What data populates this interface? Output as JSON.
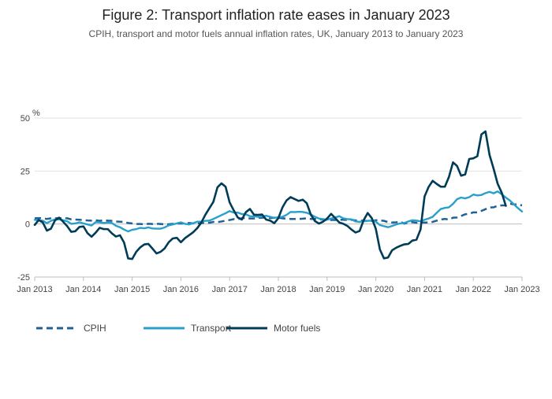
{
  "chart_data": {
    "type": "line",
    "title": "Figure 2: Transport inflation rate eases in January 2023",
    "subtitle": "CPIH, transport and motor fuels annual inflation rates, UK, January 2013 to January 2023",
    "ylabel": "%",
    "xlabel": "",
    "ylim": [
      -25,
      50
    ],
    "yticks": [
      -25,
      0,
      25,
      50
    ],
    "xtick_labels": [
      "Jan 2013",
      "Jan 2014",
      "Jan 2015",
      "Jan 2016",
      "Jan 2017",
      "Jan 2018",
      "Jan 2019",
      "Jan 2020",
      "Jan 2021",
      "Jan 2022",
      "Jan 2023"
    ],
    "x_start": "2013-01",
    "grid": true,
    "legend_position": "bottom-left",
    "series": [
      {
        "name": "CPIH",
        "color": "#206095",
        "dash": "dashed",
        "values": [
          2.7,
          2.8,
          2.7,
          2.4,
          2.7,
          2.7,
          2.8,
          2.7,
          2.7,
          2.2,
          2.1,
          2.0,
          1.9,
          1.7,
          1.6,
          1.8,
          1.5,
          1.8,
          1.6,
          1.5,
          1.2,
          1.1,
          1.0,
          0.5,
          0.3,
          0.0,
          0.0,
          -0.1,
          0.1,
          0.0,
          0.1,
          0.0,
          -0.1,
          -0.1,
          0.1,
          0.2,
          0.3,
          0.2,
          0.5,
          0.3,
          0.3,
          0.5,
          0.6,
          0.6,
          1.0,
          0.9,
          1.2,
          1.6,
          1.9,
          2.3,
          2.3,
          2.7,
          2.9,
          2.6,
          2.6,
          2.9,
          3.0,
          3.0,
          2.8,
          3.0,
          3.0,
          2.7,
          2.5,
          2.4,
          2.4,
          2.4,
          2.5,
          2.7,
          2.4,
          2.4,
          2.2,
          2.1,
          1.8,
          1.9,
          1.9,
          2.0,
          2.0,
          1.9,
          2.0,
          1.7,
          1.7,
          1.5,
          1.5,
          1.4,
          1.8,
          1.7,
          1.5,
          0.9,
          0.7,
          0.8,
          1.1,
          0.2,
          0.7,
          0.9,
          0.6,
          0.8,
          0.7,
          0.7,
          1.0,
          1.6,
          2.1,
          2.4,
          2.1,
          3.0,
          3.1,
          3.8,
          4.6,
          4.8,
          5.5,
          5.5,
          6.2,
          7.0,
          7.8,
          7.9,
          8.6,
          8.8,
          8.8,
          9.6,
          9.3,
          9.2,
          8.8
        ]
      },
      {
        "name": "Transport",
        "color": "#27a0cc",
        "dash": "solid",
        "values": [
          2.0,
          1.7,
          1.6,
          0.4,
          1.5,
          2.2,
          2.2,
          1.8,
          1.3,
          0.1,
          0.3,
          0.8,
          0.3,
          -0.2,
          -0.7,
          0.9,
          0.8,
          0.5,
          0.7,
          0.5,
          -0.8,
          -1.5,
          -2.6,
          -3.5,
          -2.7,
          -2.4,
          -1.8,
          -2.0,
          -1.6,
          -2.1,
          -2.2,
          -2.2,
          -1.6,
          -0.6,
          -0.2,
          0.3,
          0.8,
          0.1,
          -0.2,
          0.4,
          1.1,
          1.1,
          1.5,
          1.6,
          2.4,
          3.3,
          4.2,
          5.1,
          6.1,
          5.4,
          5.4,
          4.7,
          4.6,
          3.7,
          3.6,
          3.4,
          3.6,
          3.9,
          3.4,
          2.9,
          3.2,
          3.4,
          4.3,
          5.7,
          5.6,
          5.8,
          5.7,
          5.3,
          4.5,
          3.4,
          2.6,
          2.3,
          2.0,
          2.6,
          3.1,
          3.7,
          2.7,
          2.3,
          2.2,
          1.2,
          1.0,
          1.3,
          1.5,
          1.6,
          1.1,
          -0.5,
          -1.0,
          -1.5,
          -0.9,
          -0.2,
          0.3,
          0.5,
          1.2,
          1.8,
          1.6,
          1.3,
          2.0,
          2.6,
          3.4,
          5.3,
          7.1,
          7.6,
          7.9,
          9.5,
          11.7,
          12.5,
          12.1,
          12.7,
          13.9,
          13.5,
          13.7,
          14.6,
          15.2,
          14.5,
          15.4,
          14.0,
          12.5,
          11.1,
          9.3,
          7.5,
          5.9
        ]
      },
      {
        "name": "Motor fuels",
        "color": "#003c57",
        "dash": "solid",
        "values": [
          -0.4,
          1.9,
          0.7,
          -3.1,
          -2.2,
          1.7,
          3.0,
          1.1,
          -1.0,
          -3.7,
          -3.4,
          -1.4,
          -1.1,
          -4.3,
          -6.0,
          -4.1,
          -1.8,
          -2.4,
          -2.4,
          -4.4,
          -5.9,
          -5.3,
          -8.7,
          -16.2,
          -16.5,
          -13.1,
          -11.0,
          -9.6,
          -9.4,
          -11.6,
          -13.9,
          -13.1,
          -11.5,
          -8.6,
          -6.8,
          -6.5,
          -8.6,
          -6.7,
          -5.3,
          -3.9,
          -2.0,
          0.6,
          4.3,
          7.4,
          10.5,
          17.3,
          19.2,
          17.6,
          10.2,
          6.5,
          3.1,
          2.1,
          5.6,
          7.1,
          4.4,
          4.3,
          4.5,
          2.1,
          1.6,
          0.4,
          2.8,
          7.8,
          11.1,
          12.7,
          11.8,
          10.9,
          11.5,
          9.8,
          4.4,
          1.4,
          0.2,
          1.1,
          2.6,
          4.8,
          2.8,
          0.7,
          0.1,
          -0.9,
          -2.6,
          -4.0,
          -3.3,
          1.8,
          5.2,
          2.8,
          -2.3,
          -12.0,
          -16.2,
          -15.8,
          -12.4,
          -11.2,
          -10.3,
          -9.6,
          -9.4,
          -7.8,
          -7.4,
          -2.6,
          13.0,
          17.5,
          20.4,
          18.9,
          17.6,
          17.6,
          22.2,
          29.1,
          27.4,
          22.8,
          23.4,
          30.7,
          31.0,
          32.0,
          42.3,
          43.7,
          32.6,
          26.1,
          19.0,
          14.8,
          8.6
        ]
      }
    ]
  }
}
